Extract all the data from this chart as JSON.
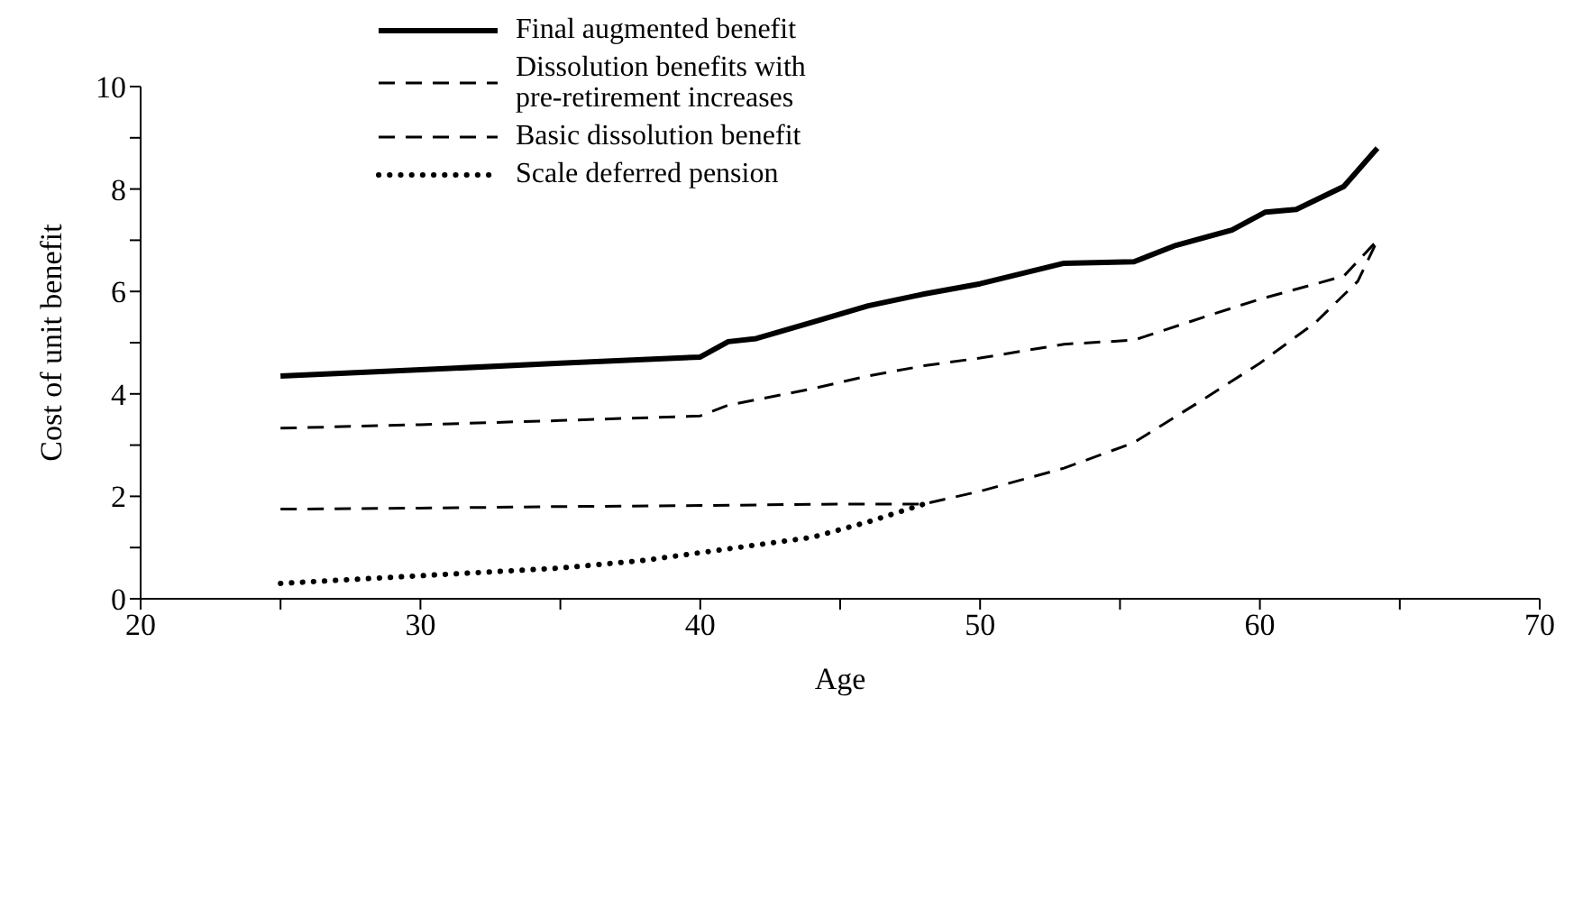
{
  "chart_data": {
    "type": "line",
    "xlabel": "Age",
    "ylabel": "Cost of unit benefit",
    "xlim": [
      20,
      70
    ],
    "ylim": [
      0,
      10
    ],
    "xticks": [
      20,
      {
        "value": 25,
        "label": null
      },
      30,
      {
        "value": 35,
        "label": null
      },
      40,
      {
        "value": 45,
        "label": null
      },
      50,
      {
        "value": 55,
        "label": null
      },
      60,
      {
        "value": 65,
        "label": null
      },
      70
    ],
    "yticks": [
      0,
      {
        "value": 1,
        "label": null
      },
      2,
      {
        "value": 3,
        "label": null
      },
      4,
      {
        "value": 5,
        "label": null
      },
      6,
      {
        "value": 7,
        "label": null
      },
      8,
      {
        "value": 9,
        "label": null
      },
      10
    ],
    "grid": false,
    "legend": "top left",
    "marker": "none",
    "series": [
      {
        "name": "Final augmented benefit",
        "color": "#000000",
        "line_style": "solid",
        "x": [
          25,
          30,
          35,
          40,
          41,
          42,
          44,
          46,
          48,
          50,
          53,
          55.5,
          57,
          59,
          60.2,
          61.3,
          63,
          64.2
        ],
        "values": [
          4.35,
          4.47,
          4.6,
          4.72,
          5.02,
          5.08,
          5.4,
          5.72,
          5.95,
          6.15,
          6.55,
          6.58,
          6.9,
          7.2,
          7.55,
          7.6,
          8.05,
          8.8
        ]
      },
      {
        "name": "Dissolution benefits with pre-retirement increases",
        "color": "#000000",
        "line_style": "dashed",
        "x": [
          25,
          30,
          35,
          40,
          41,
          44,
          46,
          48,
          50,
          53,
          55.5,
          58,
          60,
          63,
          64.2
        ],
        "values": [
          3.33,
          3.4,
          3.48,
          3.57,
          3.78,
          4.1,
          4.35,
          4.55,
          4.7,
          4.97,
          5.05,
          5.5,
          5.85,
          6.3,
          7.0
        ]
      },
      {
        "name": "Basic dissolution benefit",
        "color": "#000000",
        "line_style": "dashed",
        "x": [
          25,
          30,
          35,
          40,
          45,
          48,
          50,
          53,
          55.5,
          58,
          60,
          62,
          63.5,
          64.2
        ],
        "values": [
          1.75,
          1.77,
          1.8,
          1.82,
          1.85,
          1.85,
          2.1,
          2.55,
          3.05,
          3.9,
          4.6,
          5.4,
          6.2,
          7.0
        ]
      },
      {
        "name": "Scale deferred pension",
        "color": "#000000",
        "line_style": "dotted",
        "x": [
          25,
          30,
          35,
          38,
          40,
          42,
          44,
          46,
          48
        ],
        "values": [
          0.3,
          0.45,
          0.6,
          0.75,
          0.9,
          1.05,
          1.2,
          1.5,
          1.85
        ]
      }
    ]
  }
}
